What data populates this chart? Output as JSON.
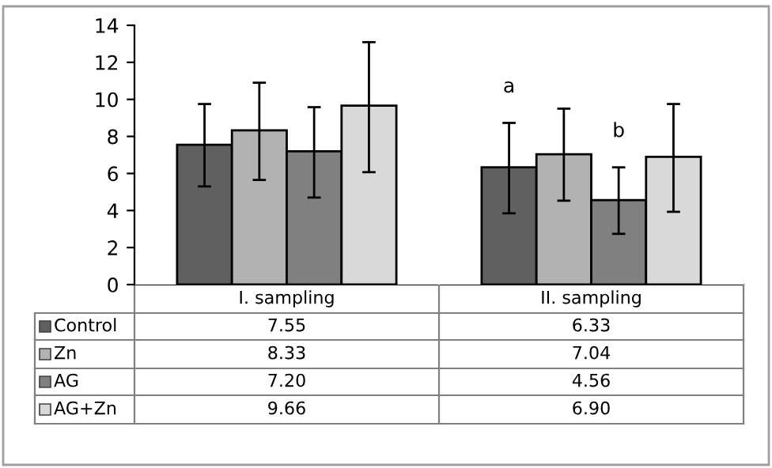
{
  "chart_data": {
    "type": "bar",
    "categories": [
      "I. sampling",
      "II. sampling"
    ],
    "series": [
      {
        "name": "Control",
        "color": "#606060",
        "values": [
          7.55,
          6.33
        ],
        "value_labels": [
          "7.55",
          "6.33"
        ],
        "errors": [
          [
            5.3,
            9.75
          ],
          [
            3.85,
            8.73
          ]
        ]
      },
      {
        "name": "Zn",
        "color": "#b2b2b2",
        "values": [
          8.33,
          7.04
        ],
        "value_labels": [
          "8.33",
          "7.04"
        ],
        "errors": [
          [
            5.65,
            10.9
          ],
          [
            4.53,
            9.5
          ]
        ]
      },
      {
        "name": "AG",
        "color": "#808080",
        "values": [
          7.2,
          4.56
        ],
        "value_labels": [
          "7.20",
          "4.56"
        ],
        "errors": [
          [
            4.7,
            9.58
          ],
          [
            2.74,
            6.33
          ]
        ]
      },
      {
        "name": "AG+Zn",
        "color": "#d9d9d9",
        "values": [
          9.66,
          6.9
        ],
        "value_labels": [
          "9.66",
          "6.90"
        ],
        "errors": [
          [
            6.07,
            13.09
          ],
          [
            3.93,
            9.75
          ]
        ]
      }
    ],
    "annotations": [
      "a",
      "b"
    ],
    "ylim": [
      0,
      14
    ],
    "yticks": [
      0,
      2,
      4,
      6,
      8,
      10,
      12,
      14
    ],
    "grid": false,
    "legend": "bottom"
  }
}
